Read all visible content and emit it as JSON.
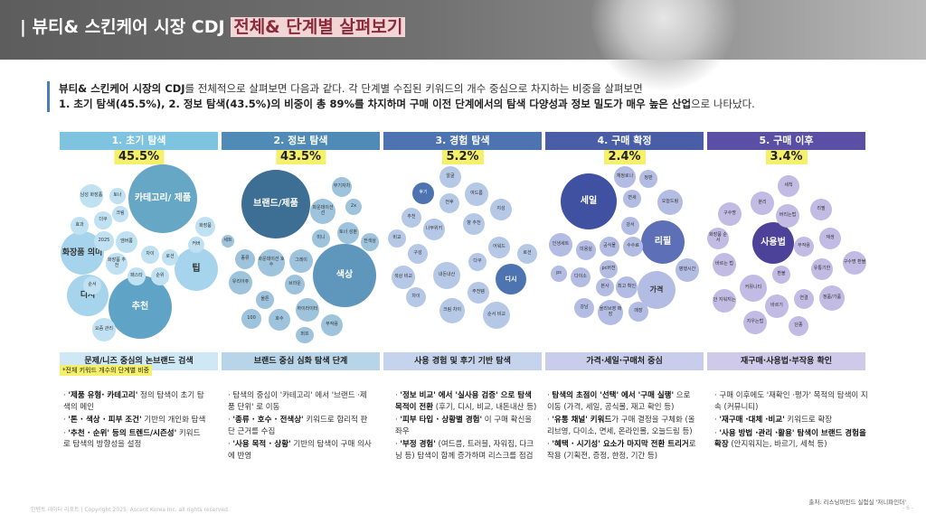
{
  "header": {
    "title_prefix": "| 뷰티& 스킨케어 시장 CDJ ",
    "title_highlight": "전체& 단계별 살펴보기"
  },
  "intro": {
    "line1_bold": "뷰티& 스킨케어 시장의 CDJ",
    "line1_rest": "를 전체적으로 살펴보면 다음과 같다. 각 단계별 수집된 키워드의 개수 중심으로 차지하는 비중을 살펴보면",
    "line2_bold": "1. 초기 탐색(45.5%), 2. 정보 탐색(43.5%)의 비중이 총 89%를 차지하며 구매 이전 단계에서의 탐색 다양성과 정보 밀도가 매우 높은 산업",
    "line2_rest": "으로 나타났다."
  },
  "note": "*전체 키워드 개수의 단계별 비중",
  "source": "출처: 리스닝마인드 실험실 '저니파인더'",
  "footer": "인텐트 데이터 리포트 | Copyright 2025. Ascent Korea Inc. all rights reserved.",
  "page_number": "- 6 -",
  "colors": {
    "stage1": "#7ec3df",
    "stage2": "#4f8bb6",
    "stage3": "#4d74b0",
    "stage4": "#4a5ea8",
    "stage5": "#5a4fa4",
    "highlight": "#f5f06a"
  },
  "columns": [
    {
      "stage": "1. 초기 탐색",
      "pct": "45.5%",
      "summary": "문제/니즈 중심의 논브랜드 검색",
      "bubbles": [
        "카테고리/ 제품",
        "화장품 의미",
        "디시",
        "추천",
        "팁",
        "남성 화장품",
        "토너",
        "더쿠",
        "효과",
        "2025",
        "엠버룸",
        "크림",
        "화장품 추천",
        "차이",
        "로션",
        "순서",
        "패스타",
        "순위",
        "화장품",
        "커버",
        "요즘 관리"
      ],
      "desc": [
        {
          "b": "'제품 유형· 카테고리'",
          "t": " 정의 탐색이 초기 탐색의 메인"
        },
        {
          "b": "'톤 · 색상 · 피부 조건'",
          "t": " 기반의 개인화 탐색"
        },
        {
          "b": "'추천 · 순위' 등의 트렌드/시즌성'",
          "t": " 키워드로 탐색의 방향성을 설정"
        }
      ]
    },
    {
      "stage": "2. 정보 탐색",
      "pct": "43.5%",
      "summary": "브랜드 중심 심화 탐색 단계",
      "bubbles": [
        "브랜드/제품",
        "색상",
        "무기자차",
        "파운데이션 선",
        "2x",
        "토너 성분",
        "미니",
        "전색상",
        "세트",
        "종류",
        "파운데이션 호수",
        "그레이",
        "유리아쥬",
        "브라운",
        "올튼",
        "100",
        "호수",
        "하이라이터",
        "부작용",
        "퍼프"
      ],
      "desc": [
        {
          "b": "",
          "t": "탐색의 중심이 '카테고리' 에서 '브랜드 ·제품 단위' 로 이동"
        },
        {
          "b": "'종류 · 호수 · 전색상'",
          "t": " 키워드로 합리적 판단 근거를 수집"
        },
        {
          "b": "'사용 목적 · 상황'",
          "t": " 기반의 탐색이 구매 의사에 반영"
        }
      ]
    },
    {
      "stage": "3. 경험 탐색",
      "pct": "5.2%",
      "summary": "사용 경험 및 후기 기반 탐색",
      "bubbles": [
        "알굴",
        "후기",
        "여드름",
        "전후",
        "지성",
        "추천",
        "나무위키",
        "향 추천",
        "비교",
        "어워드",
        "로션",
        "구성",
        "다쿠",
        "내돈내산",
        "디시",
        "색상 비교",
        "주전템",
        "차이",
        "크림 차이",
        "순서 비교"
      ],
      "desc": [
        {
          "b": "'정보 비교' 에서 '실사용 검증' 으로 탐색 목적이 전환",
          "t": " (후기, 디시, 비교, 내돈내산 등)"
        },
        {
          "b": "'피부 타입 · 상황별 경험'",
          "t": " 이 구매 확신을 좌우"
        },
        {
          "b": "'부정 경험'",
          "t": " (여드름, 트러블, 자워짐, 다크닝 등) 탐색이 함께 증가하며 리스크를 점검"
        }
      ]
    },
    {
      "stage": "4. 구매 확정",
      "pct": "2.4%",
      "summary": "가격·세일·구매처 중심",
      "bubbles": [
        "세일",
        "리필",
        "가격",
        "재정로나",
        "정판",
        "면세",
        "오늘드림",
        "강서",
        "공식몰",
        "수수료",
        "병행시간",
        "인생세트",
        "미용실",
        "pc버전",
        "다이소",
        "본사",
        "최고 확인",
        "강남",
        "올리브영 매장",
        "매장",
        "ps"
      ],
      "desc": [
        {
          "b": "탐색의 초점이 '선택' 에서 '구매 실행'",
          "t": " 으로 이동 (가격, 세일, 공식몰, 재고 확인 등)"
        },
        {
          "b": "'유통 채널' 키워드",
          "t": "가 구매 결정을 구체화 (올리브영, 다이소, 면세, 온라인몰, 오늘드림 등)"
        },
        {
          "b": "'혜택 · 시기성' 요소가 마지막 전환 트리거",
          "t": "로 작용 (기획전, 증정, 한정, 기간 등)"
        }
      ]
    },
    {
      "stage": "5. 구매 이후",
      "pct": "3.4%",
      "summary": "재구매·사용법·부작용 확인",
      "bubbles": [
        "사용법",
        "세척",
        "분리",
        "구수명",
        "버리는법",
        "리필",
        "화장품 순서",
        "재생",
        "부작용",
        "구수명 환불",
        "바르는 법",
        "유통기한",
        "환불",
        "커뮤니티",
        "안 지워지는",
        "바르기",
        "연결",
        "정품/가품",
        "지우는법",
        "단종"
      ],
      "desc": [
        {
          "b": "",
          "t": "구매 이후에도 '재확인 ·평가' 목적의 탐색이 지속 (커뮤니티)"
        },
        {
          "b": "'재구매 ·대체 ·비교'",
          "t": " 키워드로 확장"
        },
        {
          "b": "'사용 방법 ·관리 ·활용' 탐색이 브랜드 경험을 확장",
          "t": " (안지워지는, 바르기, 세척 등)"
        }
      ]
    }
  ]
}
